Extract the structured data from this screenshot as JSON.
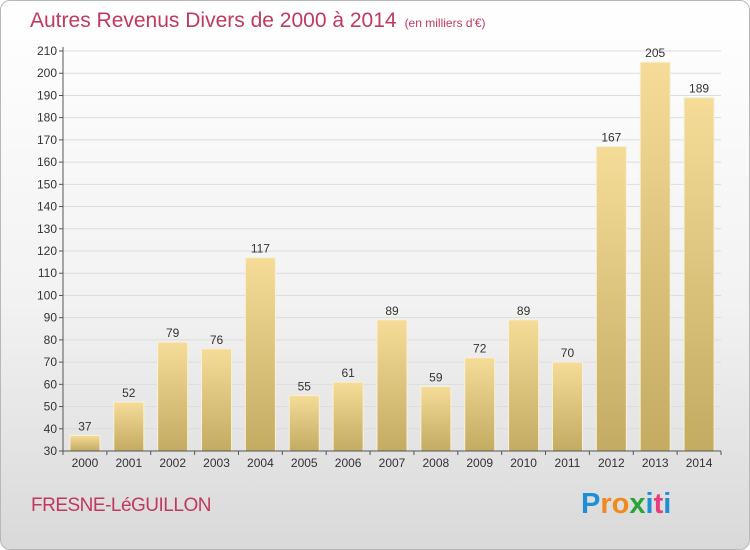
{
  "header": {
    "title": "Autres Revenus Divers de 2000 à 2014",
    "unit": "(en milliers d'€)"
  },
  "footer": {
    "town": "FRESNE-LéGUILLON",
    "logo_letters": [
      "P",
      "r",
      "o",
      "x",
      "i",
      "t",
      "i"
    ]
  },
  "colors": {
    "title": "#c0395e",
    "bar_top": "#f5dc98",
    "bar_bottom": "#c4ab62",
    "logo": [
      "#1e8fd6",
      "#f08a1c",
      "#f08a1c",
      "#2aa33a",
      "#1e8fd6",
      "#e83a7e",
      "#1e8fd6"
    ]
  },
  "chart_data": {
    "type": "bar",
    "categories": [
      "2000",
      "2001",
      "2002",
      "2003",
      "2004",
      "2005",
      "2006",
      "2007",
      "2008",
      "2009",
      "2010",
      "2011",
      "2012",
      "2013",
      "2014"
    ],
    "values": [
      37,
      52,
      79,
      76,
      117,
      55,
      61,
      89,
      59,
      72,
      89,
      70,
      167,
      205,
      189
    ],
    "ylim": [
      30,
      210
    ],
    "ytick_step": 10,
    "grid": true
  }
}
